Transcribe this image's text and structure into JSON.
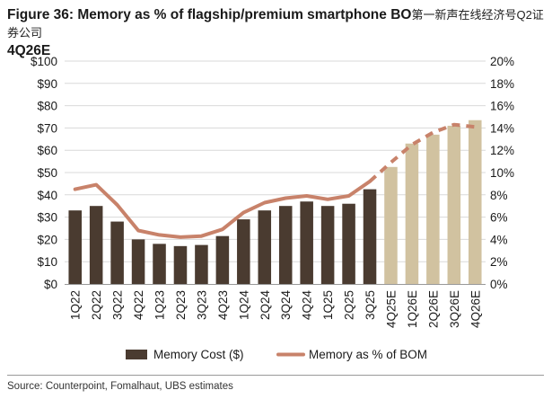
{
  "figure": {
    "title_line1": "Figure 36: Memory as % of flagship/premium smartphone BO",
    "watermark": "第一新声在线经济号Q2证券公司",
    "title_line2": "4Q26E",
    "source": "Source: Counterpoint, Fomalhaut, UBS estimates"
  },
  "colors": {
    "bar_actual": "#4a3b30",
    "bar_estimate": "#d1c2a0",
    "line": "#c8826a",
    "grid": "#d9d9d9",
    "axis": "#999999",
    "tick_text": "#1a1a1a"
  },
  "chart_data": {
    "type": "bar",
    "categories": [
      "1Q22",
      "2Q22",
      "3Q22",
      "4Q22",
      "1Q23",
      "2Q23",
      "3Q23",
      "4Q23",
      "1Q24",
      "2Q24",
      "3Q24",
      "4Q24",
      "1Q25",
      "2Q25",
      "3Q25",
      "4Q25E",
      "1Q26E",
      "2Q26E",
      "3Q26E",
      "4Q26E"
    ],
    "estimate_from_index": 15,
    "series": [
      {
        "name": "Memory Cost ($)",
        "type": "bar",
        "axis": "left",
        "values": [
          33,
          35,
          28,
          20,
          18,
          17,
          17.5,
          21.5,
          29,
          33,
          35,
          37,
          35,
          36,
          42.5,
          52.5,
          63,
          67,
          71,
          73.5
        ]
      },
      {
        "name": "Memory as % of BOM",
        "type": "line",
        "axis": "right",
        "values": [
          8.5,
          8.9,
          7.1,
          4.8,
          4.4,
          4.2,
          4.3,
          4.9,
          6.4,
          7.3,
          7.7,
          7.9,
          7.6,
          7.9,
          9.2,
          10.9,
          12.5,
          13.6,
          14.3,
          14.1
        ]
      }
    ],
    "y_left": {
      "min": 0,
      "max": 100,
      "step": 10,
      "ticks": [
        "$0",
        "$10",
        "$20",
        "$30",
        "$40",
        "$50",
        "$60",
        "$70",
        "$80",
        "$90",
        "$100"
      ]
    },
    "y_right": {
      "min": 0,
      "max": 20,
      "step": 2,
      "ticks": [
        "0%",
        "2%",
        "4%",
        "6%",
        "8%",
        "10%",
        "12%",
        "14%",
        "16%",
        "18%",
        "20%"
      ]
    },
    "grid": true,
    "legend_position": "bottom"
  }
}
